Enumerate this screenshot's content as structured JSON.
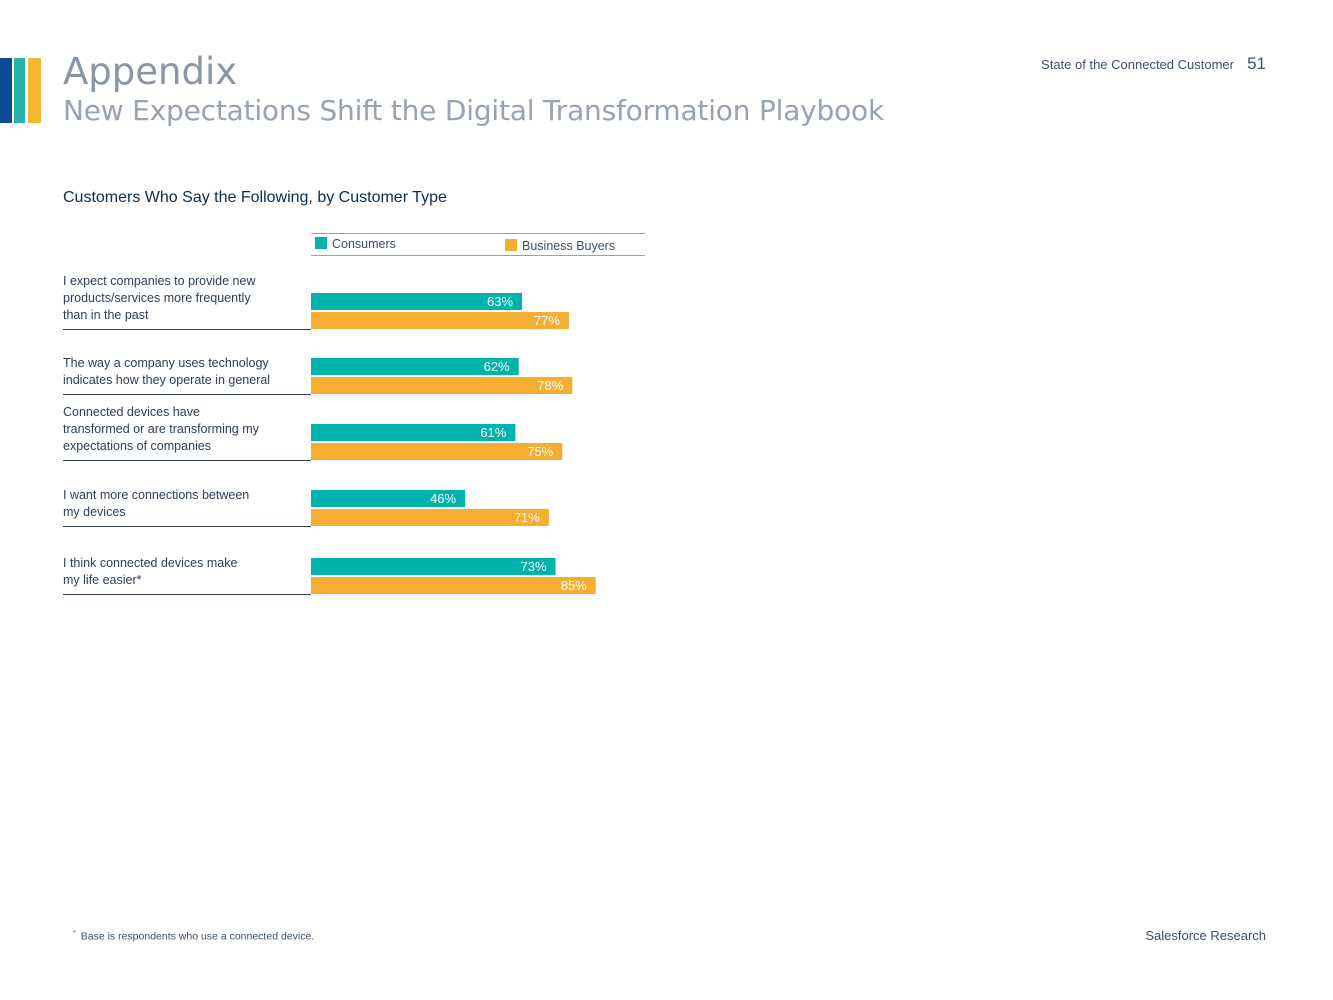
{
  "header": {
    "title": "Appendix",
    "subtitle": "New Expectations Shift the Digital Transformation Playbook",
    "report_name": "State of the Connected Customer",
    "page_number": "51"
  },
  "colors": {
    "consumers": "#00b3ad",
    "business_buyers": "#f5ae31",
    "stripe_navy": "#0c4a96",
    "stripe_teal": "#25b1ad",
    "stripe_yellow": "#f7b733"
  },
  "chart_data": {
    "type": "bar",
    "orientation": "horizontal",
    "title": "Customers Who Say the Following, by Customer Type",
    "categories": [
      "I expect companies to provide new products/services more frequently than in the past",
      "The way a company uses technology indicates how they operate in general",
      "Connected devices have transformed or are transforming my expectations of companies",
      "I want more connections between my devices",
      "I think connected devices make my life easier*"
    ],
    "category_lines": [
      [
        "I expect companies to provide new",
        "products/services more frequently",
        "than in the past"
      ],
      [
        "The way a company uses technology",
        "indicates how they operate in general"
      ],
      [
        "Connected devices have",
        "transformed or are transforming my",
        "expectations of companies"
      ],
      [
        "I want more connections between",
        "my devices"
      ],
      [
        "I think connected devices make",
        "my life easier*"
      ]
    ],
    "series": [
      {
        "name": "Consumers",
        "values": [
          63,
          62,
          61,
          46,
          73
        ],
        "labels": [
          "63%",
          "62%",
          "61%",
          "46%",
          "73%"
        ]
      },
      {
        "name": "Business Buyers",
        "values": [
          77,
          78,
          75,
          71,
          85
        ],
        "labels": [
          "77%",
          "78%",
          "75%",
          "71%",
          "85%"
        ]
      }
    ],
    "unit": "%",
    "xlim": [
      0,
      100
    ],
    "legend": "top",
    "grid": false
  },
  "footer": {
    "footnote_marker": "*",
    "footnote": "Base is respondents who use a connected device.",
    "brand": "Salesforce Research"
  }
}
